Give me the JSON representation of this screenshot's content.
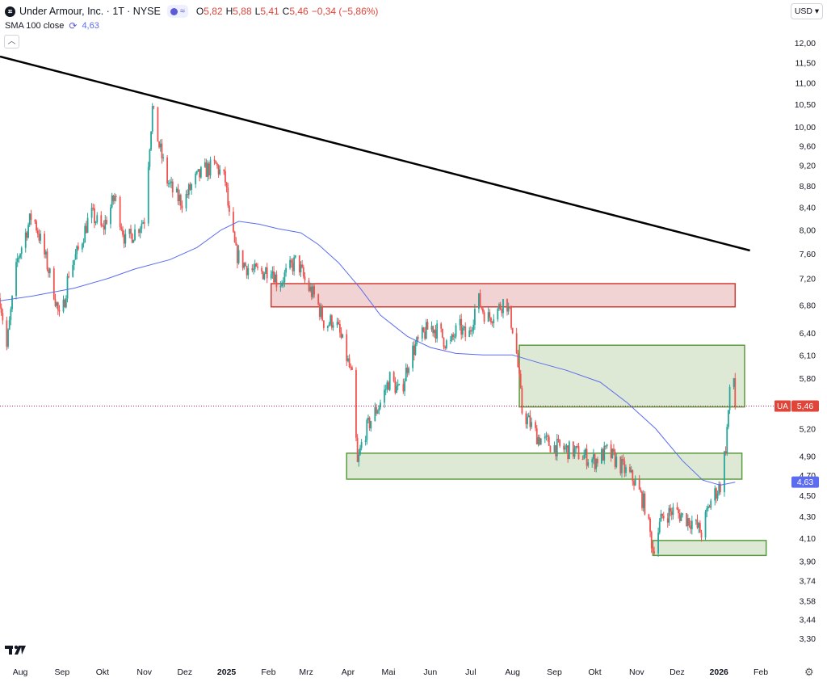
{
  "header": {
    "title": "Under Armour, Inc. · 1T · NYSE",
    "open_label": "O",
    "open_value": "5,82",
    "high_label": "H",
    "high_value": "5,88",
    "low_label": "L",
    "low_value": "5,41",
    "close_label": "C",
    "close_value": "5,46",
    "change": "−0,34 (−5,86%)"
  },
  "indicator": {
    "label": "SMA 100 close",
    "value": "4,63"
  },
  "currency": "USD ▾",
  "last_price": {
    "symbol": "UA",
    "value": "5,46"
  },
  "sma_badge": "4,63",
  "colors": {
    "up": "#26a69a",
    "down": "#ef5350",
    "sma": "#5b6cf0",
    "trend": "#000000",
    "resistance_fill": "#f2d3d3",
    "resistance_stroke": "#d43a33",
    "support_fill": "#dde9d4",
    "support_stroke": "#5a9a3e"
  },
  "chart_data": {
    "type": "candlestick",
    "symbol": "UA",
    "y_scale": "log",
    "y_ticks": [
      "12,00",
      "11,50",
      "11,00",
      "10,50",
      "10,00",
      "9,60",
      "9,20",
      "8,80",
      "8,40",
      "8,00",
      "7,60",
      "7,20",
      "6,80",
      "6,40",
      "6,10",
      "5,80",
      "5,50",
      "5,20",
      "4,90",
      "4,70",
      "4,50",
      "4,30",
      "4,10",
      "3,90",
      "3,74",
      "3,58",
      "3,44",
      "3,30"
    ],
    "y_tick_values": [
      12.0,
      11.5,
      11.0,
      10.5,
      10.0,
      9.6,
      9.2,
      8.8,
      8.4,
      8.0,
      7.6,
      7.2,
      6.8,
      6.4,
      6.1,
      5.8,
      5.5,
      5.2,
      4.9,
      4.7,
      4.5,
      4.3,
      4.1,
      3.9,
      3.74,
      3.58,
      3.44,
      3.3
    ],
    "x_ticks": [
      "Aug",
      "Sep",
      "Okt",
      "Nov",
      "Dez",
      "2025",
      "Feb",
      "Mrz",
      "Apr",
      "Mai",
      "Jun",
      "Jul",
      "Aug",
      "Sep",
      "Okt",
      "Nov",
      "Dez",
      "2026",
      "Feb"
    ],
    "x_tick_bold": [
      "2025",
      "2026"
    ],
    "last_close": 5.46,
    "trendline": {
      "from": [
        "2024-07-17",
        11.65
      ],
      "to": [
        "2026-01-24",
        7.65
      ]
    },
    "zones": [
      {
        "kind": "resistance",
        "x0": "2025-02-03",
        "x1": "2026-01-13",
        "y_high": 7.12,
        "y_low": 6.77
      },
      {
        "kind": "support",
        "x0": "2025-08-06",
        "x1": "2026-01-20",
        "y_high": 6.23,
        "y_low": 5.45
      },
      {
        "kind": "support",
        "x0": "2025-03-31",
        "x1": "2026-01-18",
        "y_high": 4.93,
        "y_low": 4.66
      },
      {
        "kind": "support",
        "x0": "2025-11-13",
        "x1": "2026-02-05",
        "y_high": 4.08,
        "y_low": 3.95
      }
    ],
    "sma_path": [
      [
        "2024-07-17",
        6.86
      ],
      [
        "2024-08-10",
        6.93
      ],
      [
        "2024-09-10",
        7.05
      ],
      [
        "2024-10-05",
        7.2
      ],
      [
        "2024-10-25",
        7.35
      ],
      [
        "2024-11-20",
        7.5
      ],
      [
        "2024-12-10",
        7.7
      ],
      [
        "2024-12-28",
        8.0
      ],
      [
        "2025-01-10",
        8.15
      ],
      [
        "2025-01-25",
        8.1
      ],
      [
        "2025-02-08",
        8.02
      ],
      [
        "2025-02-25",
        7.95
      ],
      [
        "2025-03-10",
        7.75
      ],
      [
        "2025-03-25",
        7.45
      ],
      [
        "2025-04-10",
        7.05
      ],
      [
        "2025-04-25",
        6.65
      ],
      [
        "2025-05-15",
        6.35
      ],
      [
        "2025-06-01",
        6.2
      ],
      [
        "2025-06-20",
        6.12
      ],
      [
        "2025-07-10",
        6.1
      ],
      [
        "2025-08-01",
        6.1
      ],
      [
        "2025-08-20",
        6.0
      ],
      [
        "2025-09-10",
        5.9
      ],
      [
        "2025-10-05",
        5.75
      ],
      [
        "2025-10-25",
        5.5
      ],
      [
        "2025-11-15",
        5.2
      ],
      [
        "2025-12-05",
        4.85
      ],
      [
        "2025-12-20",
        4.65
      ],
      [
        "2026-01-02",
        4.6
      ],
      [
        "2026-01-13",
        4.63
      ]
    ],
    "price_path": [
      [
        "2024-07-17",
        6.9
      ],
      [
        "2024-07-22",
        6.2
      ],
      [
        "2024-07-30",
        7.5
      ],
      [
        "2024-08-10",
        8.3
      ],
      [
        "2024-08-20",
        7.5
      ],
      [
        "2024-08-26",
        7.0
      ],
      [
        "2024-08-31",
        6.5
      ],
      [
        "2024-09-06",
        7.3
      ],
      [
        "2024-09-14",
        7.7
      ],
      [
        "2024-09-22",
        8.3
      ],
      [
        "2024-10-01",
        8.0
      ],
      [
        "2024-10-10",
        8.6
      ],
      [
        "2024-10-18",
        7.8
      ],
      [
        "2024-10-26",
        8.0
      ],
      [
        "2024-11-01",
        8.2
      ],
      [
        "2024-11-07",
        10.4
      ],
      [
        "2024-11-12",
        9.6
      ],
      [
        "2024-11-18",
        8.9
      ],
      [
        "2024-11-24",
        8.6
      ],
      [
        "2024-11-30",
        8.5
      ],
      [
        "2024-12-08",
        8.9
      ],
      [
        "2024-12-16",
        9.1
      ],
      [
        "2024-12-24",
        9.2
      ],
      [
        "2024-12-31",
        8.9
      ],
      [
        "2025-01-03",
        8.2
      ],
      [
        "2025-01-08",
        7.6
      ],
      [
        "2025-01-15",
        7.4
      ],
      [
        "2025-01-22",
        7.3
      ],
      [
        "2025-01-28",
        7.3
      ],
      [
        "2025-02-03",
        7.4
      ],
      [
        "2025-02-08",
        7.1
      ],
      [
        "2025-02-15",
        7.3
      ],
      [
        "2025-02-22",
        7.5
      ],
      [
        "2025-03-01",
        7.1
      ],
      [
        "2025-03-08",
        6.9
      ],
      [
        "2025-03-15",
        6.5
      ],
      [
        "2025-03-22",
        6.6
      ],
      [
        "2025-03-29",
        6.2
      ],
      [
        "2025-04-04",
        5.8
      ],
      [
        "2025-04-08",
        4.8
      ],
      [
        "2025-04-12",
        5.1
      ],
      [
        "2025-04-18",
        5.3
      ],
      [
        "2025-04-25",
        5.5
      ],
      [
        "2025-05-02",
        5.8
      ],
      [
        "2025-05-10",
        5.6
      ],
      [
        "2025-05-17",
        6.1
      ],
      [
        "2025-05-24",
        6.3
      ],
      [
        "2025-06-01",
        6.5
      ],
      [
        "2025-06-08",
        6.4
      ],
      [
        "2025-06-15",
        6.2
      ],
      [
        "2025-06-22",
        6.5
      ],
      [
        "2025-06-29",
        6.3
      ],
      [
        "2025-07-06",
        6.9
      ],
      [
        "2025-07-13",
        6.6
      ],
      [
        "2025-07-20",
        6.7
      ],
      [
        "2025-07-27",
        6.9
      ],
      [
        "2025-08-03",
        6.3
      ],
      [
        "2025-08-08",
        5.4
      ],
      [
        "2025-08-12",
        5.3
      ],
      [
        "2025-08-20",
        5.1
      ],
      [
        "2025-09-01",
        5.0
      ],
      [
        "2025-09-15",
        4.95
      ],
      [
        "2025-10-01",
        4.85
      ],
      [
        "2025-10-10",
        4.95
      ],
      [
        "2025-10-20",
        4.8
      ],
      [
        "2025-10-30",
        4.65
      ],
      [
        "2025-11-07",
        4.4
      ],
      [
        "2025-11-13",
        4.0
      ],
      [
        "2025-11-20",
        4.3
      ],
      [
        "2025-11-28",
        4.35
      ],
      [
        "2025-12-05",
        4.3
      ],
      [
        "2025-12-12",
        4.25
      ],
      [
        "2025-12-19",
        4.15
      ],
      [
        "2025-12-26",
        4.45
      ],
      [
        "2026-01-02",
        4.6
      ],
      [
        "2026-01-06",
        5.0
      ],
      [
        "2026-01-09",
        5.6
      ],
      [
        "2026-01-12",
        5.8
      ],
      [
        "2026-01-13",
        5.46
      ]
    ]
  }
}
